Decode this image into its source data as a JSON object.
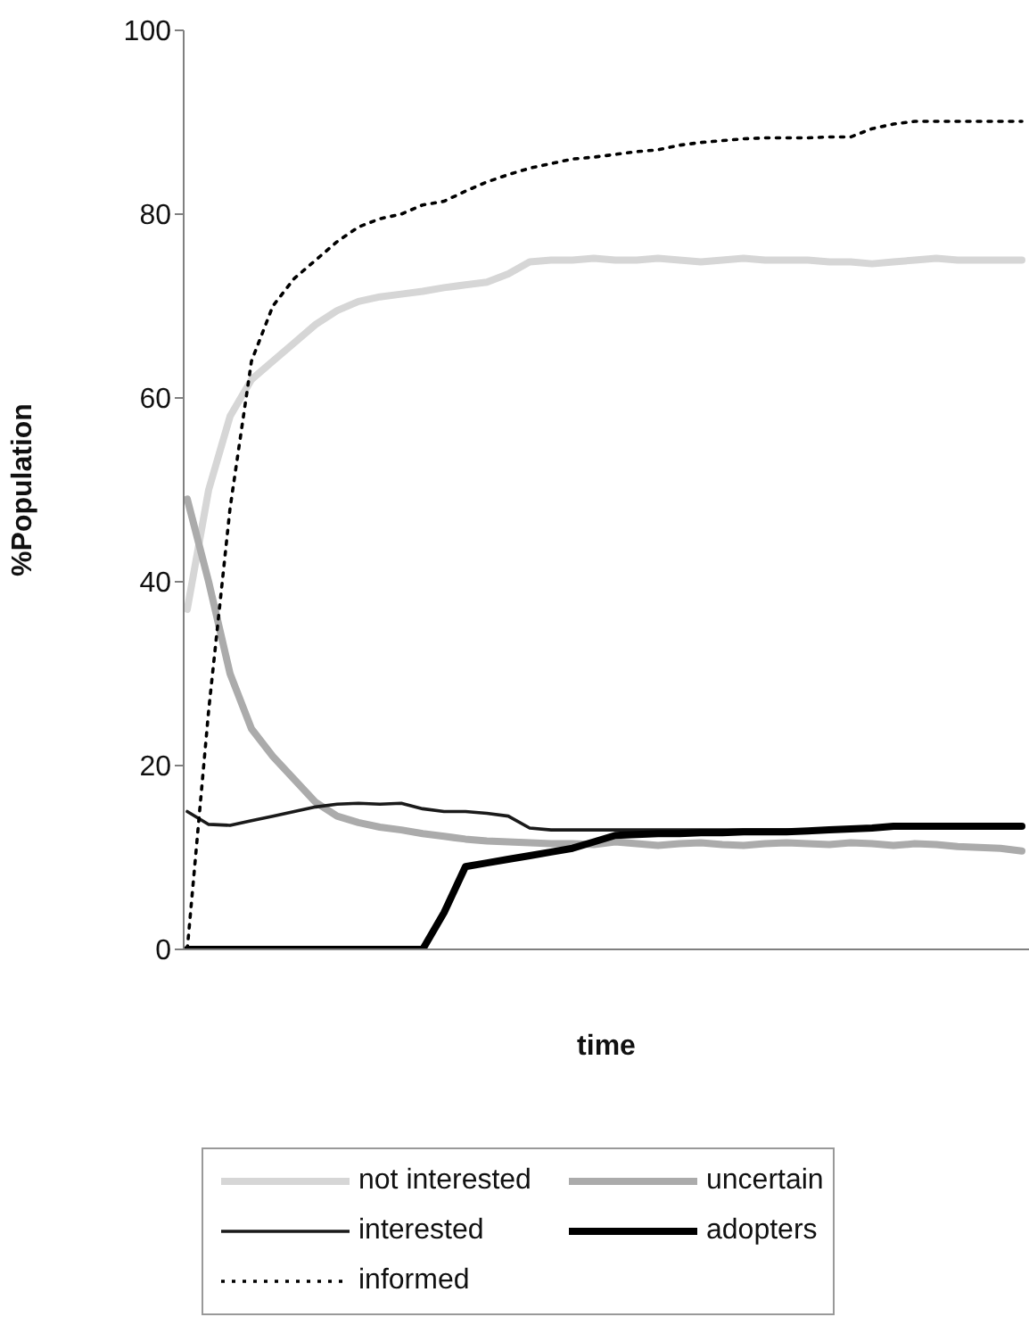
{
  "chart_data": {
    "type": "line",
    "xlabel": "time",
    "ylabel": "%Population",
    "categories": [
      null,
      null,
      null,
      null,
      null,
      null,
      null,
      null,
      null,
      null,
      null,
      null,
      null,
      null,
      null,
      null,
      null,
      null,
      null,
      null,
      null,
      null,
      null,
      null,
      null,
      null,
      null,
      null,
      null,
      null,
      null,
      null,
      null,
      null,
      null,
      null,
      null,
      null,
      null,
      null
    ],
    "series": [
      {
        "name": "not interested",
        "color": "#d6d6d6",
        "values": [
          37,
          50,
          58,
          62,
          64,
          66,
          68,
          69.5,
          70.5,
          71,
          71.3,
          71.6,
          72,
          72.3,
          72.6,
          73.5,
          74.8,
          75,
          75,
          75.2,
          75,
          75,
          75.2,
          75,
          74.8,
          75,
          75.2,
          75,
          75,
          75,
          74.8,
          74.8,
          74.6,
          74.8,
          75,
          75.2,
          75,
          75,
          75,
          75
        ]
      },
      {
        "name": "uncertain",
        "color": "#ababab",
        "values": [
          49,
          40,
          30,
          24,
          21,
          18.5,
          16,
          14.5,
          13.8,
          13.3,
          13,
          12.6,
          12.3,
          12,
          11.8,
          11.7,
          11.6,
          11.5,
          11.5,
          11.4,
          11.7,
          11.5,
          11.3,
          11.5,
          11.6,
          11.4,
          11.3,
          11.5,
          11.6,
          11.5,
          11.4,
          11.6,
          11.5,
          11.3,
          11.5,
          11.4,
          11.2,
          11.1,
          11,
          10.7
        ]
      },
      {
        "name": "interested",
        "color": "#1a1a1a",
        "values": [
          15,
          13.6,
          13.5,
          14,
          14.5,
          15,
          15.5,
          15.8,
          15.9,
          15.8,
          15.9,
          15.3,
          15,
          15,
          14.8,
          14.5,
          13.2,
          13,
          13,
          13,
          13,
          13,
          13,
          13,
          13,
          13,
          13,
          13,
          13,
          13,
          13.1,
          13.2,
          13.2,
          13.3,
          13.3,
          13.3,
          13.3,
          13.3,
          13.3,
          13.3
        ]
      },
      {
        "name": "adopters",
        "color": "#000000",
        "values": [
          0,
          0,
          0,
          0,
          0,
          0,
          0,
          0,
          0,
          0,
          0,
          0,
          4,
          9,
          9.4,
          9.8,
          10.2,
          10.6,
          11,
          11.7,
          12.4,
          12.5,
          12.6,
          12.6,
          12.7,
          12.7,
          12.8,
          12.8,
          12.8,
          12.9,
          13,
          13.1,
          13.2,
          13.4,
          13.4,
          13.4,
          13.4,
          13.4,
          13.4,
          13.4
        ]
      },
      {
        "name": "informed",
        "color": "#000000",
        "line_style": "dotted",
        "values": [
          0,
          26,
          48,
          64,
          70,
          73,
          75,
          77,
          78.6,
          79.5,
          80,
          81,
          81.4,
          82.5,
          83.5,
          84.3,
          85,
          85.5,
          86,
          86.2,
          86.5,
          86.8,
          87,
          87.5,
          87.8,
          88,
          88.2,
          88.3,
          88.3,
          88.3,
          88.4,
          88.4,
          89.3,
          89.8,
          90.1,
          90.1,
          90.1,
          90.1,
          90.1,
          90.1
        ]
      }
    ],
    "ylim": [
      0,
      100
    ],
    "yticks": [
      0,
      20,
      40,
      60,
      80,
      100
    ],
    "grid": false,
    "legend": "bottom",
    "marker": "none",
    "line_style": "solid"
  }
}
